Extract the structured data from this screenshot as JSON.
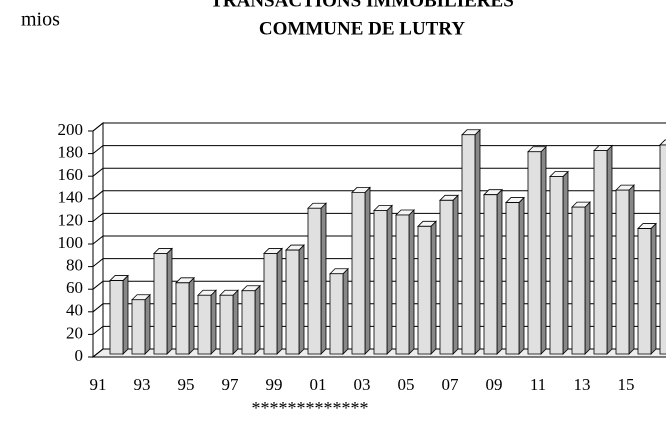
{
  "chart_data": {
    "type": "bar3d",
    "title": "TRANSACTIONS IMMOBILIERES",
    "subtitle": "COMMUNE DE LUTRY",
    "y_label": "mios",
    "annotation": "*************",
    "categories": [
      "91",
      null,
      "93",
      null,
      "95",
      null,
      "97",
      null,
      "99",
      null,
      "01",
      null,
      "03",
      null,
      "05",
      null,
      "07",
      null,
      "09",
      null,
      "11",
      null,
      "13",
      null,
      "15",
      null
    ],
    "values": [
      65,
      48,
      89,
      63,
      52,
      52,
      56,
      89,
      92,
      129,
      71,
      143,
      127,
      123,
      113,
      136,
      194,
      141,
      134,
      179,
      157,
      130,
      180,
      145,
      111,
      185
    ],
    "color": "#e0e0e0",
    "ylim": [
      0,
      200
    ],
    "yticks": [
      0,
      20,
      40,
      60,
      80,
      100,
      120,
      140,
      160,
      180,
      200
    ],
    "grid": true
  }
}
